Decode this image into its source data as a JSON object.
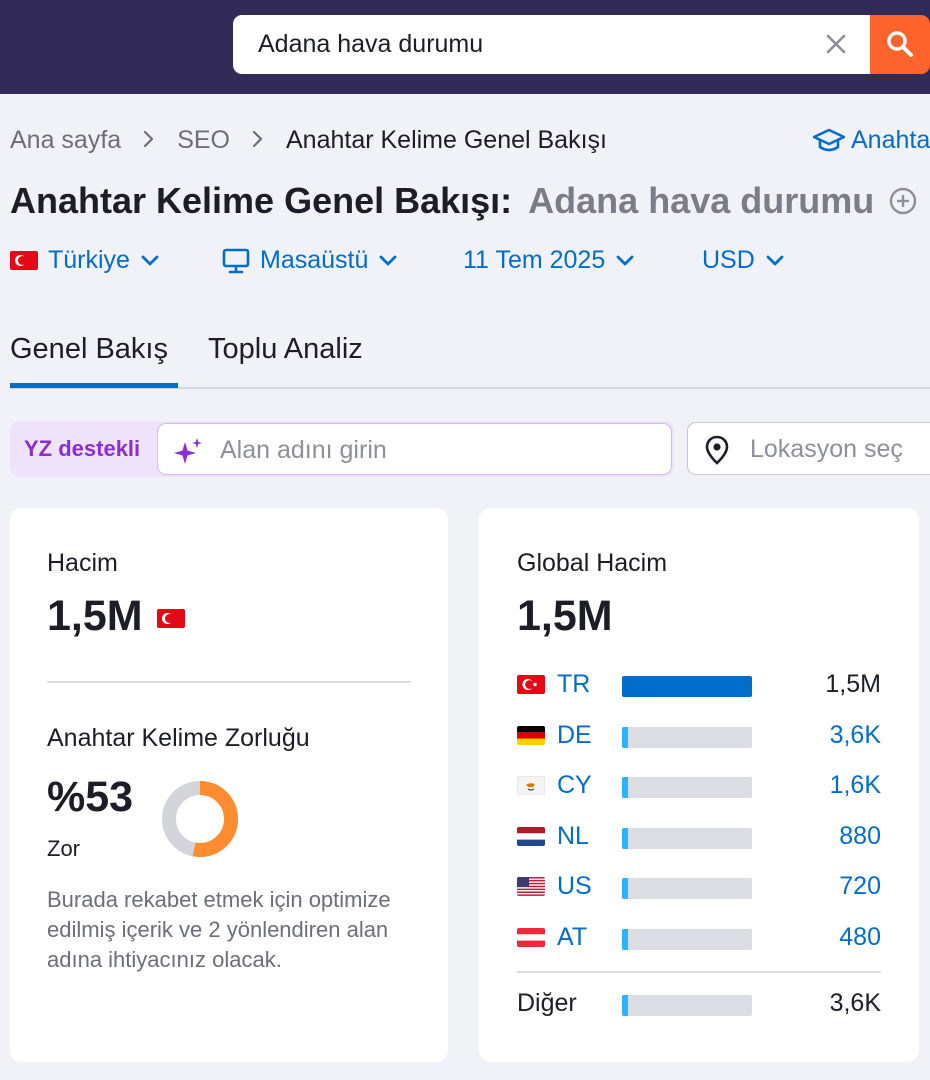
{
  "search": {
    "value": "Adana hava durumu"
  },
  "breadcrumb": {
    "home": "Ana sayfa",
    "section": "SEO",
    "current": "Anahtar Kelime Genel Bakışı",
    "academy": "Anahta"
  },
  "title": {
    "prefix": "Anahtar Kelime Genel Bakışı:",
    "keyword": "Adana hava durumu"
  },
  "filters": {
    "country": "Türkiye",
    "device": "Masaüstü",
    "date": "11 Tem 2025",
    "currency": "USD"
  },
  "tabs": {
    "overview": "Genel Bakış",
    "bulk": "Toplu Analiz"
  },
  "ai": {
    "label": "YZ destekli",
    "domain_placeholder": "Alan adını girin",
    "location_placeholder": "Lokasyon seç"
  },
  "volume": {
    "label": "Hacim",
    "value": "1,5M"
  },
  "difficulty": {
    "label": "Anahtar Kelime Zorluğu",
    "value": "%53",
    "percent": 53,
    "level": "Zor",
    "description": "Burada rekabet etmek için optimize edilmiş içerik ve 2 yönlendiren alan adına ihtiyacınız olacak."
  },
  "global": {
    "label": "Global Hacim",
    "value": "1,5M",
    "countries": [
      {
        "code": "TR",
        "value": "1,5M",
        "share": 1.0
      },
      {
        "code": "DE",
        "value": "3,6K",
        "share": 0.04
      },
      {
        "code": "CY",
        "value": "1,6K",
        "share": 0.04
      },
      {
        "code": "NL",
        "value": "880",
        "share": 0.04
      },
      {
        "code": "US",
        "value": "720",
        "share": 0.04
      },
      {
        "code": "AT",
        "value": "480",
        "share": 0.04
      }
    ],
    "other": {
      "label": "Diğer",
      "value": "3,6K",
      "share": 0.04
    }
  },
  "colors": {
    "accent": "#006dca",
    "brand_orange": "#ff642d",
    "topbar": "#322b57",
    "difficulty": "#ff8c2e",
    "bar_primary": "#006dca",
    "bar_small": "#2bb3ff"
  }
}
